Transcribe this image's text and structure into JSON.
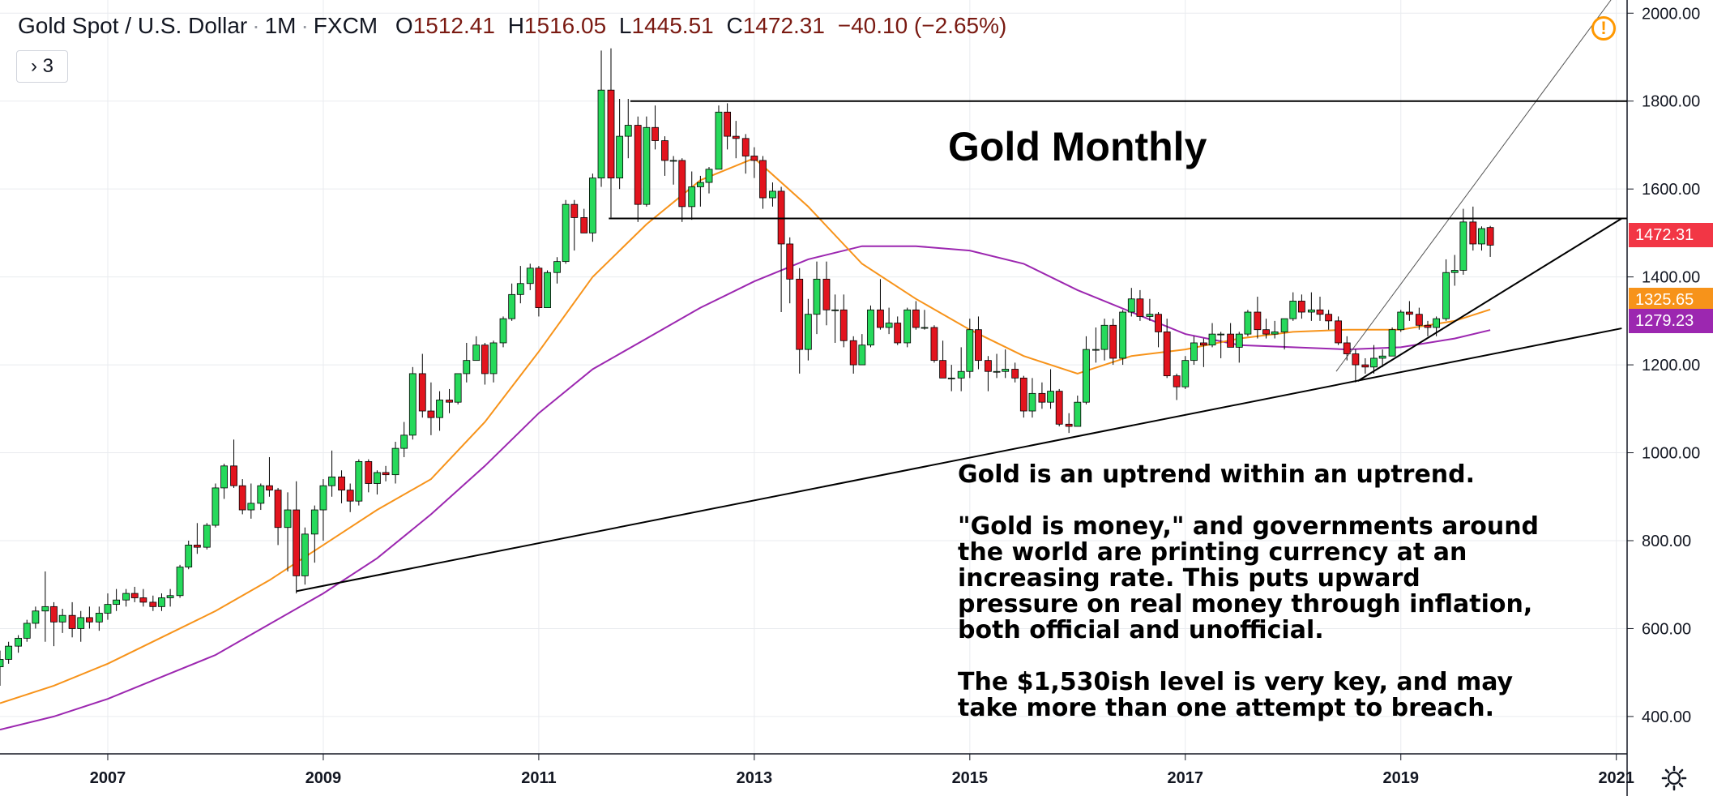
{
  "header": {
    "symbol": "Gold Spot / U.S. Dollar",
    "interval": "1M",
    "exchange": "FXCM",
    "open_label": "O",
    "open": "1512.41",
    "high_label": "H",
    "high": "1516.05",
    "low_label": "L",
    "low": "1445.51",
    "close_label": "C",
    "close": "1472.31",
    "change": "−40.10 (−2.65%)"
  },
  "indicator_toggle": {
    "label": "› 3"
  },
  "annotations": {
    "title": "Gold Monthly",
    "note1": "Gold is an uptrend within an uptrend.",
    "note2": "\"Gold is money,\" and governments around\nthe world are printing currency at an\nincreasing rate.  This puts upward\npressure on real money through inflation,\nboth official and unofficial.",
    "note3": "The $1,530ish level is very key, and may\ntake more than one attempt to breach."
  },
  "price_tags": [
    {
      "value": "1472.31",
      "color": "#f23645"
    },
    {
      "value": "1325.65",
      "color": "#f7931a"
    },
    {
      "value": "1279.23",
      "color": "#9c27b0"
    }
  ],
  "chart_data": {
    "type": "candlestick",
    "title": "Gold Monthly",
    "x_tick_labels": [
      "2007",
      "2009",
      "2011",
      "2013",
      "2015",
      "2017",
      "2019",
      "2021"
    ],
    "y_tick_labels": [
      "400.00",
      "600.00",
      "800.00",
      "1000.00",
      "1200.00",
      "1400.00",
      "1600.00",
      "1800.00",
      "2000.00"
    ],
    "ylim": [
      315,
      2030
    ],
    "xlim": [
      2006.0,
      2021.1
    ],
    "grid": true,
    "colors": {
      "up": "#26d95b",
      "down": "#e2141e",
      "ma_short": "#f7931a",
      "ma_long": "#9c27b0",
      "grid": "#e9ebef"
    },
    "candles": [
      [
        2006.0,
        513,
        550,
        470,
        530
      ],
      [
        2006.08,
        530,
        570,
        520,
        560
      ],
      [
        2006.17,
        560,
        585,
        545,
        578
      ],
      [
        2006.25,
        578,
        620,
        570,
        612
      ],
      [
        2006.33,
        612,
        650,
        600,
        640
      ],
      [
        2006.42,
        640,
        730,
        570,
        650
      ],
      [
        2006.5,
        650,
        660,
        560,
        615
      ],
      [
        2006.58,
        615,
        645,
        590,
        630
      ],
      [
        2006.67,
        630,
        660,
        580,
        600
      ],
      [
        2006.75,
        600,
        640,
        570,
        625
      ],
      [
        2006.83,
        625,
        650,
        600,
        615
      ],
      [
        2006.92,
        615,
        650,
        595,
        635
      ],
      [
        2007.0,
        635,
        680,
        620,
        655
      ],
      [
        2007.08,
        655,
        690,
        640,
        665
      ],
      [
        2007.17,
        665,
        690,
        650,
        680
      ],
      [
        2007.25,
        680,
        695,
        660,
        670
      ],
      [
        2007.33,
        670,
        690,
        650,
        660
      ],
      [
        2007.42,
        660,
        675,
        640,
        650
      ],
      [
        2007.5,
        650,
        680,
        640,
        670
      ],
      [
        2007.58,
        670,
        690,
        650,
        675
      ],
      [
        2007.67,
        675,
        745,
        670,
        740
      ],
      [
        2007.75,
        740,
        800,
        735,
        790
      ],
      [
        2007.83,
        790,
        840,
        770,
        785
      ],
      [
        2007.92,
        785,
        840,
        780,
        835
      ],
      [
        2008.0,
        835,
        930,
        830,
        920
      ],
      [
        2008.08,
        920,
        975,
        895,
        970
      ],
      [
        2008.17,
        970,
        1030,
        920,
        925
      ],
      [
        2008.25,
        925,
        940,
        860,
        870
      ],
      [
        2008.33,
        870,
        930,
        850,
        885
      ],
      [
        2008.42,
        885,
        930,
        870,
        925
      ],
      [
        2008.5,
        925,
        990,
        900,
        915
      ],
      [
        2008.58,
        915,
        920,
        790,
        830
      ],
      [
        2008.67,
        830,
        910,
        730,
        870
      ],
      [
        2008.75,
        870,
        935,
        680,
        720
      ],
      [
        2008.83,
        720,
        830,
        700,
        815
      ],
      [
        2008.92,
        815,
        880,
        750,
        870
      ],
      [
        2009.0,
        870,
        940,
        800,
        925
      ],
      [
        2009.08,
        925,
        1005,
        900,
        945
      ],
      [
        2009.17,
        945,
        960,
        885,
        915
      ],
      [
        2009.25,
        915,
        930,
        865,
        890
      ],
      [
        2009.33,
        890,
        985,
        880,
        980
      ],
      [
        2009.42,
        980,
        985,
        910,
        930
      ],
      [
        2009.5,
        930,
        960,
        905,
        955
      ],
      [
        2009.58,
        955,
        970,
        935,
        950
      ],
      [
        2009.67,
        950,
        1025,
        930,
        1010
      ],
      [
        2009.75,
        1010,
        1070,
        990,
        1040
      ],
      [
        2009.83,
        1040,
        1195,
        1030,
        1180
      ],
      [
        2009.92,
        1180,
        1225,
        1080,
        1095
      ],
      [
        2010.0,
        1095,
        1160,
        1040,
        1080
      ],
      [
        2010.08,
        1080,
        1140,
        1050,
        1120
      ],
      [
        2010.17,
        1120,
        1145,
        1090,
        1115
      ],
      [
        2010.25,
        1115,
        1180,
        1110,
        1180
      ],
      [
        2010.33,
        1180,
        1250,
        1160,
        1210
      ],
      [
        2010.42,
        1210,
        1265,
        1210,
        1245
      ],
      [
        2010.5,
        1245,
        1250,
        1155,
        1180
      ],
      [
        2010.58,
        1180,
        1255,
        1160,
        1250
      ],
      [
        2010.67,
        1250,
        1310,
        1240,
        1305
      ],
      [
        2010.75,
        1305,
        1385,
        1300,
        1360
      ],
      [
        2010.83,
        1360,
        1425,
        1340,
        1385
      ],
      [
        2010.92,
        1385,
        1430,
        1370,
        1420
      ],
      [
        2011.0,
        1420,
        1425,
        1310,
        1330
      ],
      [
        2011.08,
        1330,
        1415,
        1330,
        1410
      ],
      [
        2011.17,
        1410,
        1445,
        1385,
        1435
      ],
      [
        2011.25,
        1435,
        1575,
        1430,
        1565
      ],
      [
        2011.33,
        1565,
        1575,
        1460,
        1535
      ],
      [
        2011.42,
        1535,
        1555,
        1500,
        1500
      ],
      [
        2011.5,
        1500,
        1635,
        1480,
        1625
      ],
      [
        2011.58,
        1625,
        1915,
        1605,
        1825
      ],
      [
        2011.67,
        1825,
        1920,
        1535,
        1625
      ],
      [
        2011.75,
        1625,
        1805,
        1600,
        1720
      ],
      [
        2011.83,
        1720,
        1805,
        1670,
        1745
      ],
      [
        2011.92,
        1745,
        1765,
        1525,
        1565
      ],
      [
        2012.0,
        1565,
        1765,
        1560,
        1740
      ],
      [
        2012.08,
        1740,
        1790,
        1690,
        1710
      ],
      [
        2012.17,
        1710,
        1720,
        1630,
        1665
      ],
      [
        2012.25,
        1665,
        1675,
        1610,
        1665
      ],
      [
        2012.33,
        1665,
        1670,
        1525,
        1560
      ],
      [
        2012.42,
        1560,
        1640,
        1530,
        1605
      ],
      [
        2012.5,
        1605,
        1630,
        1560,
        1615
      ],
      [
        2012.58,
        1615,
        1650,
        1590,
        1645
      ],
      [
        2012.67,
        1645,
        1790,
        1645,
        1775
      ],
      [
        2012.75,
        1775,
        1795,
        1690,
        1720
      ],
      [
        2012.83,
        1720,
        1755,
        1670,
        1715
      ],
      [
        2012.92,
        1715,
        1725,
        1635,
        1675
      ],
      [
        2013.0,
        1675,
        1695,
        1625,
        1665
      ],
      [
        2013.08,
        1665,
        1675,
        1555,
        1580
      ],
      [
        2013.17,
        1580,
        1615,
        1560,
        1595
      ],
      [
        2013.25,
        1595,
        1605,
        1320,
        1475
      ],
      [
        2013.33,
        1475,
        1490,
        1340,
        1395
      ],
      [
        2013.42,
        1395,
        1420,
        1180,
        1235
      ],
      [
        2013.5,
        1235,
        1350,
        1210,
        1315
      ],
      [
        2013.58,
        1315,
        1435,
        1270,
        1395
      ],
      [
        2013.67,
        1395,
        1435,
        1290,
        1325
      ],
      [
        2013.75,
        1325,
        1360,
        1250,
        1325
      ],
      [
        2013.83,
        1325,
        1360,
        1240,
        1255
      ],
      [
        2013.92,
        1255,
        1265,
        1180,
        1200
      ],
      [
        2014.0,
        1200,
        1270,
        1200,
        1245
      ],
      [
        2014.08,
        1245,
        1335,
        1240,
        1325
      ],
      [
        2014.17,
        1325,
        1395,
        1280,
        1285
      ],
      [
        2014.25,
        1285,
        1330,
        1270,
        1295
      ],
      [
        2014.33,
        1295,
        1310,
        1245,
        1250
      ],
      [
        2014.42,
        1250,
        1330,
        1240,
        1325
      ],
      [
        2014.5,
        1325,
        1345,
        1280,
        1285
      ],
      [
        2014.58,
        1285,
        1325,
        1280,
        1285
      ],
      [
        2014.67,
        1285,
        1290,
        1205,
        1210
      ],
      [
        2014.75,
        1210,
        1255,
        1185,
        1170
      ],
      [
        2014.83,
        1170,
        1200,
        1140,
        1170
      ],
      [
        2014.92,
        1170,
        1240,
        1140,
        1185
      ],
      [
        2015.0,
        1185,
        1305,
        1170,
        1280
      ],
      [
        2015.08,
        1280,
        1310,
        1190,
        1210
      ],
      [
        2015.17,
        1210,
        1220,
        1140,
        1185
      ],
      [
        2015.25,
        1185,
        1225,
        1170,
        1185
      ],
      [
        2015.33,
        1185,
        1235,
        1170,
        1190
      ],
      [
        2015.42,
        1190,
        1205,
        1160,
        1170
      ],
      [
        2015.5,
        1170,
        1175,
        1080,
        1095
      ],
      [
        2015.58,
        1095,
        1170,
        1080,
        1135
      ],
      [
        2015.67,
        1135,
        1160,
        1100,
        1115
      ],
      [
        2015.75,
        1115,
        1190,
        1100,
        1140
      ],
      [
        2015.83,
        1140,
        1145,
        1060,
        1065
      ],
      [
        2015.92,
        1065,
        1090,
        1045,
        1060
      ],
      [
        2016.0,
        1060,
        1130,
        1060,
        1115
      ],
      [
        2016.08,
        1115,
        1265,
        1110,
        1235
      ],
      [
        2016.17,
        1235,
        1285,
        1205,
        1235
      ],
      [
        2016.25,
        1235,
        1305,
        1210,
        1290
      ],
      [
        2016.33,
        1290,
        1305,
        1200,
        1215
      ],
      [
        2016.42,
        1215,
        1325,
        1200,
        1320
      ],
      [
        2016.5,
        1320,
        1375,
        1310,
        1350
      ],
      [
        2016.58,
        1350,
        1370,
        1300,
        1310
      ],
      [
        2016.67,
        1310,
        1350,
        1300,
        1315
      ],
      [
        2016.75,
        1315,
        1320,
        1240,
        1275
      ],
      [
        2016.83,
        1275,
        1305,
        1170,
        1175
      ],
      [
        2016.92,
        1175,
        1180,
        1120,
        1150
      ],
      [
        2017.0,
        1150,
        1220,
        1145,
        1210
      ],
      [
        2017.08,
        1210,
        1265,
        1200,
        1250
      ],
      [
        2017.17,
        1250,
        1260,
        1195,
        1245
      ],
      [
        2017.25,
        1245,
        1295,
        1240,
        1270
      ],
      [
        2017.33,
        1270,
        1275,
        1215,
        1270
      ],
      [
        2017.42,
        1270,
        1295,
        1240,
        1240
      ],
      [
        2017.5,
        1240,
        1275,
        1205,
        1270
      ],
      [
        2017.58,
        1270,
        1325,
        1265,
        1320
      ],
      [
        2017.67,
        1320,
        1355,
        1260,
        1280
      ],
      [
        2017.75,
        1280,
        1305,
        1260,
        1270
      ],
      [
        2017.83,
        1270,
        1300,
        1260,
        1275
      ],
      [
        2017.92,
        1275,
        1305,
        1235,
        1305
      ],
      [
        2018.0,
        1305,
        1365,
        1300,
        1345
      ],
      [
        2018.08,
        1345,
        1360,
        1305,
        1320
      ],
      [
        2018.17,
        1320,
        1365,
        1300,
        1325
      ],
      [
        2018.25,
        1325,
        1355,
        1300,
        1315
      ],
      [
        2018.33,
        1315,
        1325,
        1280,
        1300
      ],
      [
        2018.42,
        1300,
        1310,
        1245,
        1250
      ],
      [
        2018.5,
        1250,
        1265,
        1210,
        1225
      ],
      [
        2018.58,
        1225,
        1235,
        1160,
        1200
      ],
      [
        2018.67,
        1200,
        1215,
        1180,
        1195
      ],
      [
        2018.75,
        1195,
        1245,
        1180,
        1215
      ],
      [
        2018.83,
        1215,
        1235,
        1195,
        1220
      ],
      [
        2018.92,
        1220,
        1285,
        1220,
        1280
      ],
      [
        2019.0,
        1280,
        1325,
        1275,
        1320
      ],
      [
        2019.08,
        1320,
        1345,
        1300,
        1315
      ],
      [
        2019.17,
        1315,
        1330,
        1280,
        1290
      ],
      [
        2019.25,
        1290,
        1300,
        1265,
        1285
      ],
      [
        2019.33,
        1285,
        1310,
        1265,
        1305
      ],
      [
        2019.42,
        1305,
        1440,
        1300,
        1410
      ],
      [
        2019.5,
        1410,
        1450,
        1380,
        1415
      ],
      [
        2019.58,
        1415,
        1555,
        1405,
        1525
      ],
      [
        2019.67,
        1525,
        1560,
        1460,
        1475
      ],
      [
        2019.75,
        1475,
        1515,
        1460,
        1510
      ],
      [
        2019.83,
        1512.41,
        1516.05,
        1445.51,
        1472.31
      ]
    ],
    "ma_short_line": [
      [
        2006.0,
        430
      ],
      [
        2006.5,
        470
      ],
      [
        2007.0,
        520
      ],
      [
        2007.5,
        580
      ],
      [
        2008.0,
        640
      ],
      [
        2008.5,
        710
      ],
      [
        2009.0,
        790
      ],
      [
        2009.5,
        870
      ],
      [
        2010.0,
        940
      ],
      [
        2010.5,
        1070
      ],
      [
        2011.0,
        1230
      ],
      [
        2011.5,
        1400
      ],
      [
        2012.0,
        1520
      ],
      [
        2012.5,
        1620
      ],
      [
        2013.0,
        1670
      ],
      [
        2013.5,
        1560
      ],
      [
        2014.0,
        1430
      ],
      [
        2014.5,
        1350
      ],
      [
        2015.0,
        1280
      ],
      [
        2015.5,
        1220
      ],
      [
        2016.0,
        1180
      ],
      [
        2016.5,
        1220
      ],
      [
        2017.0,
        1235
      ],
      [
        2017.5,
        1260
      ],
      [
        2018.0,
        1275
      ],
      [
        2018.5,
        1280
      ],
      [
        2019.0,
        1280
      ],
      [
        2019.5,
        1300
      ],
      [
        2019.83,
        1326
      ]
    ],
    "ma_long_line": [
      [
        2006.0,
        370
      ],
      [
        2006.5,
        400
      ],
      [
        2007.0,
        440
      ],
      [
        2007.5,
        490
      ],
      [
        2008.0,
        540
      ],
      [
        2008.5,
        610
      ],
      [
        2009.0,
        680
      ],
      [
        2009.5,
        760
      ],
      [
        2010.0,
        860
      ],
      [
        2010.5,
        970
      ],
      [
        2011.0,
        1090
      ],
      [
        2011.5,
        1190
      ],
      [
        2012.0,
        1260
      ],
      [
        2012.5,
        1330
      ],
      [
        2013.0,
        1390
      ],
      [
        2013.5,
        1440
      ],
      [
        2014.0,
        1470
      ],
      [
        2014.5,
        1470
      ],
      [
        2015.0,
        1460
      ],
      [
        2015.5,
        1430
      ],
      [
        2016.0,
        1370
      ],
      [
        2016.5,
        1320
      ],
      [
        2017.0,
        1270
      ],
      [
        2017.5,
        1245
      ],
      [
        2018.0,
        1240
      ],
      [
        2018.5,
        1235
      ],
      [
        2019.0,
        1240
      ],
      [
        2019.5,
        1260
      ],
      [
        2019.83,
        1279
      ]
    ],
    "drawn_lines": [
      {
        "from": [
          2008.75,
          685
        ],
        "to": [
          2021.05,
          1283
        ]
      },
      {
        "from": [
          2018.6,
          1163
        ],
        "to": [
          2021.05,
          1533
        ]
      },
      {
        "from": [
          2018.4,
          1185
        ],
        "to": [
          2020.95,
          2030
        ]
      },
      {
        "from": [
          2011.65,
          1533
        ],
        "to": [
          2021.1,
          1533
        ]
      },
      {
        "from": [
          2011.85,
          1800
        ],
        "to": [
          2021.1,
          1800
        ]
      }
    ]
  }
}
